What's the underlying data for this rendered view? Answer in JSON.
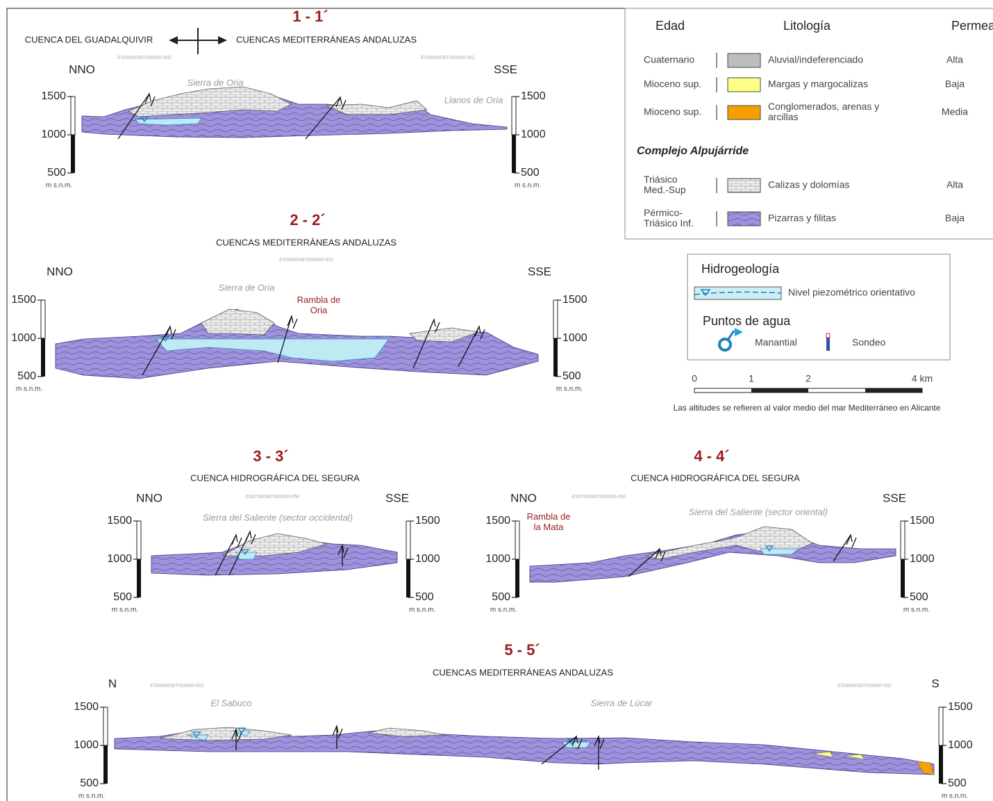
{
  "sections": [
    {
      "number": "1 - 1´",
      "basins": [
        "CUENCA DEL GUADALQUIVIR",
        "CUENCAS MEDITERRÁNEAS ANDALUZAS"
      ],
      "codes": [
        "ES050MSBT000050-002",
        "ES060MSBT000060-002"
      ],
      "left": "NNO",
      "right": "SSE",
      "places": [
        "Sierra de Oria",
        "Llanos de Oria"
      ],
      "elevations": [
        1500,
        1000,
        500
      ],
      "unit": "m s.n.m."
    },
    {
      "number": "2 - 2´",
      "basins": [
        "CUENCAS MEDITERRÁNEAS ANDALUZAS"
      ],
      "codes": [
        "ES060MSBT000060-002"
      ],
      "left": "NNO",
      "right": "SSE",
      "places": [
        "Sierra de Oria"
      ],
      "annotations": [
        [
          "Rambla de",
          "Oria"
        ]
      ],
      "elevations": [
        1500,
        1000,
        500
      ],
      "unit": "m s.n.m."
    },
    {
      "number": "3 - 3´",
      "basins": [
        "CUENCA HIDROGRÁFICA DEL SEGURA"
      ],
      "codes": [
        "ES070MSBT000000-056"
      ],
      "left": "NNO",
      "right": "SSE",
      "places": [
        "Sierra del Saliente (sector occidental)"
      ],
      "elevations": [
        1500,
        1000,
        500
      ],
      "unit": "m s.n.m."
    },
    {
      "number": "4 - 4´",
      "basins": [
        "CUENCA HIDROGRÁFICA DEL SEGURA"
      ],
      "codes": [
        "ES070MSBT000000-056"
      ],
      "left": "NNO",
      "right": "SSE",
      "places": [
        "Sierra del Saliente (sector oriental)"
      ],
      "annotations": [
        [
          "Rambla de",
          "la Mata"
        ]
      ],
      "elevations": [
        1500,
        1000,
        500
      ],
      "unit": "m s.n.m."
    },
    {
      "number": "5 - 5´",
      "basins": [
        "CUENCAS MEDITERRÁNEAS ANDALUZAS"
      ],
      "codes": [
        "ES060MSBT000060-002",
        "ES060MSBT000060-002"
      ],
      "left": "N",
      "right": "S",
      "places": [
        "El Sabuco",
        "Sierra de Lúcar"
      ],
      "elevations": [
        1500,
        1000,
        500
      ],
      "unit": "m s.n.m."
    }
  ],
  "legend": {
    "headers": [
      "Edad",
      "Litología",
      "Permeabilidad"
    ],
    "groups": [
      {
        "rows": [
          {
            "age": [
              "Cuaternario"
            ],
            "lithology": [
              "Aluvial/indeferenciado"
            ],
            "permeability": "Alta"
          },
          {
            "age": [
              "Mioceno sup."
            ],
            "lithology": [
              "Margas y margocalizas"
            ],
            "permeability": "Baja"
          },
          {
            "age": [
              "Mioceno sup."
            ],
            "lithology": [
              "Conglomerados, arenas y",
              "arcillas"
            ],
            "permeability": "Media"
          }
        ]
      },
      {
        "title": "Complejo Alpujárride",
        "rows": [
          {
            "age": [
              "Triásico",
              "Med.-Sup"
            ],
            "lithology": [
              "Calizas y dolomías"
            ],
            "permeability": "Alta"
          },
          {
            "age": [
              "Pérmico-",
              "Triásico Inf."
            ],
            "lithology": [
              "Pizarras y filitas"
            ],
            "permeability": "Baja"
          }
        ]
      }
    ]
  },
  "hydrogeology": {
    "title": "Hidrogeología",
    "level": "Nivel piezométrico orientativo",
    "points_title": "Puntos de agua",
    "spring": "Manantial",
    "borehole": "Sondeo"
  },
  "scale_bar": {
    "labels": [
      0,
      1,
      2,
      "4 km"
    ],
    "note": "Las altitudes se refieren al valor medio del mar Mediterráneo en Alicante"
  }
}
